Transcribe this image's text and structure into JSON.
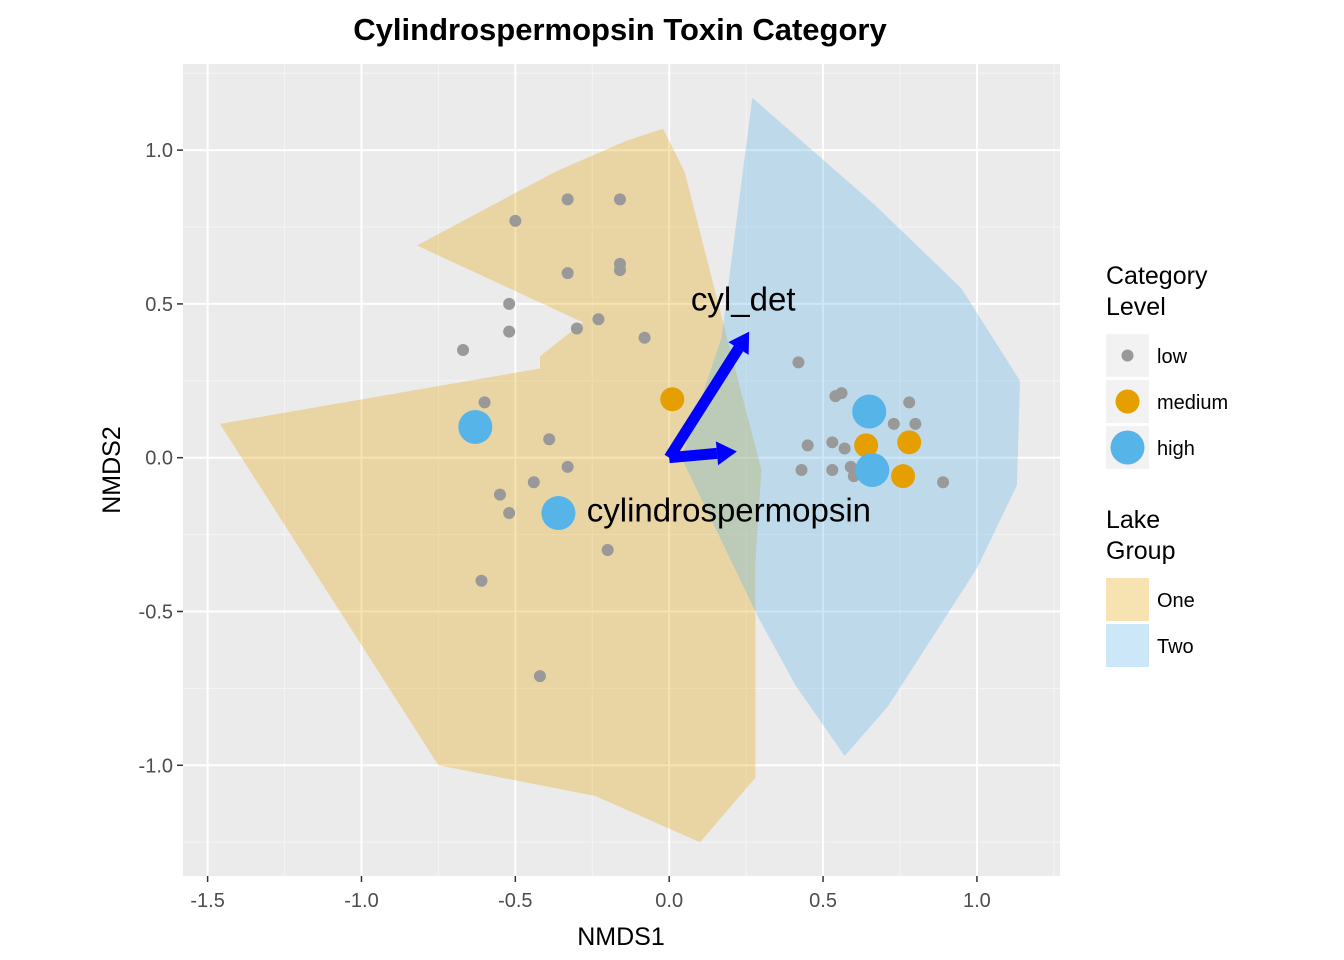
{
  "chart_data": {
    "type": "scatter",
    "title": "Cylindrospermopsin Toxin Category",
    "xlabel": "NMDS1",
    "ylabel": "NMDS2",
    "xlim": [
      -1.58,
      1.27
    ],
    "ylim": [
      -1.36,
      1.28
    ],
    "x_ticks": [
      -1.5,
      -1.0,
      -0.5,
      0.0,
      0.5,
      1.0
    ],
    "x_tick_labels": [
      "-1.5",
      "-1.0",
      "-0.5",
      "0.0",
      "0.5",
      "1.0"
    ],
    "y_ticks": [
      -1.0,
      -0.5,
      0.0,
      0.5,
      1.0
    ],
    "y_tick_labels": [
      "-1.0",
      "-0.5",
      "0.0",
      "0.5",
      "1.0"
    ],
    "grid": true,
    "panel_background": "#ebebeb",
    "hulls": [
      {
        "name": "One",
        "color": "#e69f00",
        "points": [
          [
            -0.28,
            0.44
          ],
          [
            -0.42,
            0.33
          ],
          [
            -0.42,
            0.29
          ],
          [
            -1.46,
            0.11
          ],
          [
            -0.75,
            -1.0
          ],
          [
            -0.24,
            -1.1
          ],
          [
            0.1,
            -1.25
          ],
          [
            0.28,
            -1.04
          ],
          [
            0.28,
            -0.34
          ],
          [
            0.3,
            -0.04
          ],
          [
            0.18,
            0.42
          ],
          [
            0.05,
            0.93
          ],
          [
            -0.02,
            1.07
          ],
          [
            -0.14,
            1.03
          ],
          [
            -0.37,
            0.93
          ],
          [
            -0.82,
            0.69
          ]
        ]
      },
      {
        "name": "Two",
        "color": "#56b4e9",
        "points": [
          [
            0.27,
            1.17
          ],
          [
            0.67,
            0.82
          ],
          [
            0.95,
            0.55
          ],
          [
            1.14,
            0.25
          ],
          [
            1.13,
            -0.09
          ],
          [
            1.0,
            -0.36
          ],
          [
            0.71,
            -0.81
          ],
          [
            0.57,
            -0.97
          ],
          [
            0.41,
            -0.74
          ],
          [
            0.29,
            -0.52
          ],
          [
            0.04,
            0.0
          ],
          [
            0.17,
            0.39
          ]
        ]
      }
    ],
    "series": [
      {
        "name": "low",
        "color": "#999999",
        "points": [
          [
            -0.5,
            0.77
          ],
          [
            -0.33,
            0.84
          ],
          [
            -0.16,
            0.84
          ],
          [
            -0.16,
            0.63
          ],
          [
            -0.33,
            0.6
          ],
          [
            -0.16,
            0.61
          ],
          [
            -0.52,
            0.5
          ],
          [
            -0.52,
            0.41
          ],
          [
            -0.3,
            0.42
          ],
          [
            -0.23,
            0.45
          ],
          [
            -0.08,
            0.39
          ],
          [
            -0.67,
            0.35
          ],
          [
            -0.6,
            0.18
          ],
          [
            -0.39,
            0.06
          ],
          [
            -0.33,
            -0.03
          ],
          [
            -0.44,
            -0.08
          ],
          [
            -0.55,
            -0.12
          ],
          [
            -0.52,
            -0.18
          ],
          [
            -0.2,
            -0.3
          ],
          [
            -0.61,
            -0.4
          ],
          [
            -0.42,
            -0.71
          ],
          [
            0.42,
            0.31
          ],
          [
            0.54,
            0.2
          ],
          [
            0.56,
            0.21
          ],
          [
            0.45,
            0.04
          ],
          [
            0.53,
            0.05
          ],
          [
            0.57,
            0.03
          ],
          [
            0.59,
            -0.03
          ],
          [
            0.43,
            -0.04
          ],
          [
            0.53,
            -0.04
          ],
          [
            0.6,
            -0.06
          ],
          [
            0.73,
            0.11
          ],
          [
            0.78,
            0.18
          ],
          [
            0.8,
            0.11
          ],
          [
            0.89,
            -0.08
          ],
          [
            0.76,
            -0.07
          ],
          [
            0.79,
            0.06
          ]
        ]
      },
      {
        "name": "medium",
        "color": "#e69f00",
        "points": [
          [
            0.01,
            0.19
          ],
          [
            0.64,
            0.04
          ],
          [
            0.78,
            0.05
          ],
          [
            0.76,
            -0.06
          ]
        ]
      },
      {
        "name": "high",
        "color": "#56b4e9",
        "points": [
          [
            -0.63,
            0.1
          ],
          [
            -0.36,
            -0.18
          ],
          [
            0.65,
            0.15
          ],
          [
            0.66,
            -0.04
          ]
        ]
      }
    ],
    "vectors": [
      {
        "name": "cyl_det",
        "x": 0.26,
        "y": 0.41
      },
      {
        "name": "cylindrospermopsin",
        "x": 0.22,
        "y": 0.02
      }
    ],
    "vector_color": "#0000ff",
    "legend_position": "right",
    "legends": [
      {
        "title_lines": [
          "Category",
          "Level"
        ],
        "items": [
          {
            "label": "low",
            "type": "point",
            "color": "#999999",
            "size": "small"
          },
          {
            "label": "medium",
            "type": "point",
            "color": "#e69f00",
            "size": "medium"
          },
          {
            "label": "high",
            "type": "point",
            "color": "#56b4e9",
            "size": "large"
          }
        ]
      },
      {
        "title_lines": [
          "Lake",
          "Group"
        ],
        "items": [
          {
            "label": "One",
            "type": "fill",
            "color": "#e69f00"
          },
          {
            "label": "Two",
            "type": "fill",
            "color": "#56b4e9"
          }
        ]
      }
    ]
  }
}
